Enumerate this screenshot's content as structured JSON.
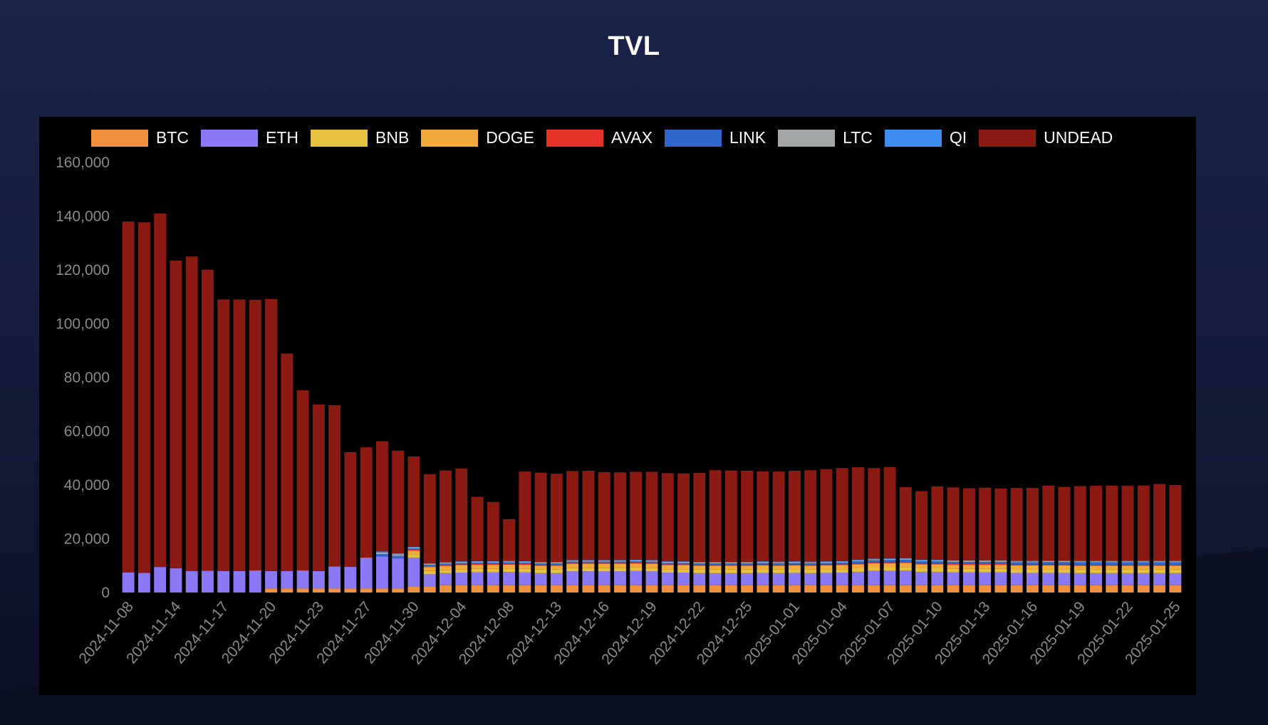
{
  "page": {
    "title": "TVL"
  },
  "colors": {
    "page_background": "#151c3c",
    "panel_background": "#000000",
    "tick_text": "#8a8a8a",
    "title_text": "#ffffff"
  },
  "chart_data": {
    "type": "bar",
    "stacked": true,
    "title": "TVL",
    "xlabel": "",
    "ylabel": "",
    "ylim": [
      0,
      160000
    ],
    "yticks": [
      0,
      20000,
      40000,
      60000,
      80000,
      100000,
      120000,
      140000,
      160000
    ],
    "ytick_labels": [
      "0",
      "20,000",
      "40,000",
      "60,000",
      "80,000",
      "100,000",
      "120,000",
      "140,000",
      "160,000"
    ],
    "grid": false,
    "legend_position": "top",
    "x_tick_labels": [
      "2024-11-08",
      "2024-11-14",
      "2024-11-17",
      "2024-11-20",
      "2024-11-23",
      "2024-11-27",
      "2024-11-30",
      "2024-12-04",
      "2024-12-08",
      "2024-12-13",
      "2024-12-16",
      "2024-12-19",
      "2024-12-22",
      "2024-12-25",
      "2025-01-01",
      "2025-01-04",
      "2025-01-07",
      "2025-01-10",
      "2025-01-13",
      "2025-01-16",
      "2025-01-19",
      "2025-01-22",
      "2025-01-25"
    ],
    "x_tick_every": 3,
    "bar_count": 67,
    "series": [
      {
        "name": "BTC",
        "color": "#f0913f",
        "values": [
          0,
          0,
          0,
          0,
          0,
          0,
          0,
          0,
          0,
          1500,
          1500,
          1500,
          1500,
          1500,
          1500,
          1500,
          1500,
          1500,
          2300,
          2300,
          2700,
          2700,
          2700,
          2700,
          2700,
          2700,
          2700,
          2700,
          2700,
          2700,
          2700,
          2700,
          2700,
          2700,
          2700,
          2700,
          2700,
          2700,
          2700,
          2700,
          2700,
          2700,
          2700,
          2700,
          2700,
          2700,
          2700,
          2700,
          2700,
          2700,
          2700,
          2700,
          2700,
          2700,
          2700,
          2700,
          2700,
          2700,
          2700,
          2700,
          2700,
          2700,
          2700,
          2700,
          2700,
          2700,
          2700
        ]
      },
      {
        "name": "ETH",
        "color": "#8b78f5",
        "values": [
          7500,
          7300,
          9500,
          9000,
          8000,
          8100,
          8000,
          8000,
          8200,
          6500,
          6500,
          6700,
          6500,
          8200,
          8100,
          11500,
          11900,
          11200,
          10700,
          4500,
          4500,
          4700,
          4800,
          4800,
          4900,
          4800,
          4500,
          4500,
          5200,
          5200,
          5200,
          5200,
          5300,
          5200,
          4700,
          4700,
          4500,
          4500,
          4500,
          4500,
          4600,
          4500,
          4600,
          4500,
          4600,
          4700,
          5000,
          5400,
          5400,
          5500,
          5000,
          5000,
          4800,
          4800,
          4800,
          4800,
          4600,
          4600,
          4600,
          4600,
          4500,
          4500,
          4500,
          4500,
          4500,
          4500,
          4500
        ]
      },
      {
        "name": "BNB",
        "color": "#e6c13f",
        "values": [
          0,
          0,
          0,
          0,
          0,
          0,
          0,
          0,
          0,
          0,
          0,
          0,
          0,
          0,
          0,
          0,
          0,
          0,
          1200,
          1200,
          1200,
          1300,
          1300,
          1300,
          1300,
          1300,
          1300,
          1300,
          1300,
          1300,
          1300,
          1300,
          1300,
          1300,
          1300,
          1300,
          1300,
          1300,
          1300,
          1300,
          1300,
          1300,
          1300,
          1300,
          1300,
          1300,
          1300,
          1300,
          1300,
          1300,
          1300,
          1300,
          1300,
          1300,
          1300,
          1300,
          1300,
          1300,
          1300,
          1300,
          1300,
          1300,
          1300,
          1300,
          1300,
          1300,
          1300
        ]
      },
      {
        "name": "DOGE",
        "color": "#f2a93b",
        "values": [
          0,
          0,
          0,
          0,
          0,
          0,
          0,
          0,
          0,
          0,
          0,
          0,
          0,
          0,
          0,
          0,
          0,
          0,
          1400,
          1500,
          1500,
          1500,
          1500,
          1500,
          1500,
          1500,
          1500,
          1500,
          1500,
          1500,
          1500,
          1500,
          1500,
          1500,
          1500,
          1500,
          1500,
          1500,
          1500,
          1500,
          1500,
          1500,
          1500,
          1500,
          1500,
          1500,
          1500,
          1500,
          1500,
          1500,
          1500,
          1500,
          1500,
          1500,
          1500,
          1500,
          1500,
          1500,
          1500,
          1500,
          1500,
          1500,
          1500,
          1500,
          1500,
          1500,
          1500
        ]
      },
      {
        "name": "AVAX",
        "color": "#e8332a",
        "values": [
          0,
          0,
          0,
          0,
          0,
          0,
          0,
          0,
          0,
          0,
          0,
          0,
          0,
          0,
          0,
          0,
          0,
          0,
          300,
          300,
          300,
          300,
          300,
          300,
          300,
          300,
          300,
          300,
          300,
          300,
          300,
          300,
          300,
          300,
          300,
          300,
          300,
          300,
          300,
          300,
          300,
          300,
          300,
          300,
          300,
          300,
          300,
          300,
          300,
          300,
          300,
          300,
          300,
          300,
          300,
          300,
          300,
          300,
          300,
          300,
          300,
          300,
          300,
          300,
          300,
          300,
          300
        ]
      },
      {
        "name": "LINK",
        "color": "#2f66cc",
        "values": [
          0,
          0,
          0,
          0,
          0,
          0,
          0,
          0,
          0,
          0,
          0,
          0,
          0,
          0,
          0,
          0,
          900,
          900,
          500,
          500,
          500,
          500,
          500,
          500,
          500,
          500,
          500,
          500,
          500,
          500,
          500,
          500,
          500,
          500,
          500,
          500,
          500,
          500,
          500,
          500,
          600,
          600,
          600,
          600,
          600,
          600,
          800,
          800,
          900,
          900,
          800,
          800,
          800,
          800,
          800,
          800,
          800,
          800,
          900,
          900,
          900,
          900,
          900,
          900,
          900,
          900,
          900
        ]
      },
      {
        "name": "LTC",
        "color": "#a3a7a8",
        "values": [
          0,
          0,
          0,
          0,
          0,
          0,
          0,
          0,
          0,
          0,
          0,
          0,
          0,
          0,
          0,
          0,
          600,
          600,
          400,
          400,
          400,
          400,
          400,
          400,
          400,
          400,
          400,
          400,
          400,
          400,
          400,
          400,
          400,
          400,
          400,
          400,
          400,
          400,
          400,
          400,
          400,
          400,
          400,
          400,
          400,
          400,
          400,
          400,
          400,
          400,
          400,
          400,
          400,
          400,
          400,
          400,
          400,
          400,
          400,
          400,
          400,
          400,
          400,
          400,
          400,
          400,
          400
        ]
      },
      {
        "name": "QI",
        "color": "#3d8ef0",
        "values": [
          0,
          0,
          0,
          0,
          0,
          0,
          0,
          0,
          0,
          0,
          0,
          0,
          0,
          0,
          0,
          0,
          400,
          400,
          200,
          200,
          200,
          200,
          200,
          200,
          200,
          200,
          200,
          200,
          200,
          200,
          200,
          200,
          200,
          200,
          200,
          200,
          200,
          200,
          200,
          200,
          200,
          200,
          200,
          200,
          200,
          200,
          200,
          200,
          200,
          200,
          200,
          200,
          200,
          200,
          200,
          200,
          200,
          200,
          200,
          200,
          200,
          200,
          200,
          200,
          200,
          200,
          200
        ]
      },
      {
        "name": "UNDEAD",
        "color": "#8b1a12",
        "values": [
          130500,
          130400,
          131500,
          114500,
          117000,
          112000,
          101000,
          101000,
          100700,
          101200,
          80900,
          67000,
          62000,
          60000,
          42600,
          41000,
          41000,
          38200,
          33600,
          33100,
          34100,
          34500,
          23900,
          22000,
          15500,
          33300,
          33200,
          32800,
          33100,
          33200,
          32700,
          32600,
          32700,
          32800,
          32800,
          32700,
          33100,
          34100,
          34000,
          33900,
          33500,
          33500,
          33700,
          34000,
          34300,
          34600,
          34400,
          33700,
          34000,
          26400,
          25500,
          27300,
          27100,
          26800,
          27000,
          26700,
          27100,
          27100,
          27900,
          27400,
          27800,
          27900,
          28000,
          27900,
          28000,
          28600,
          28200
        ]
      }
    ]
  }
}
